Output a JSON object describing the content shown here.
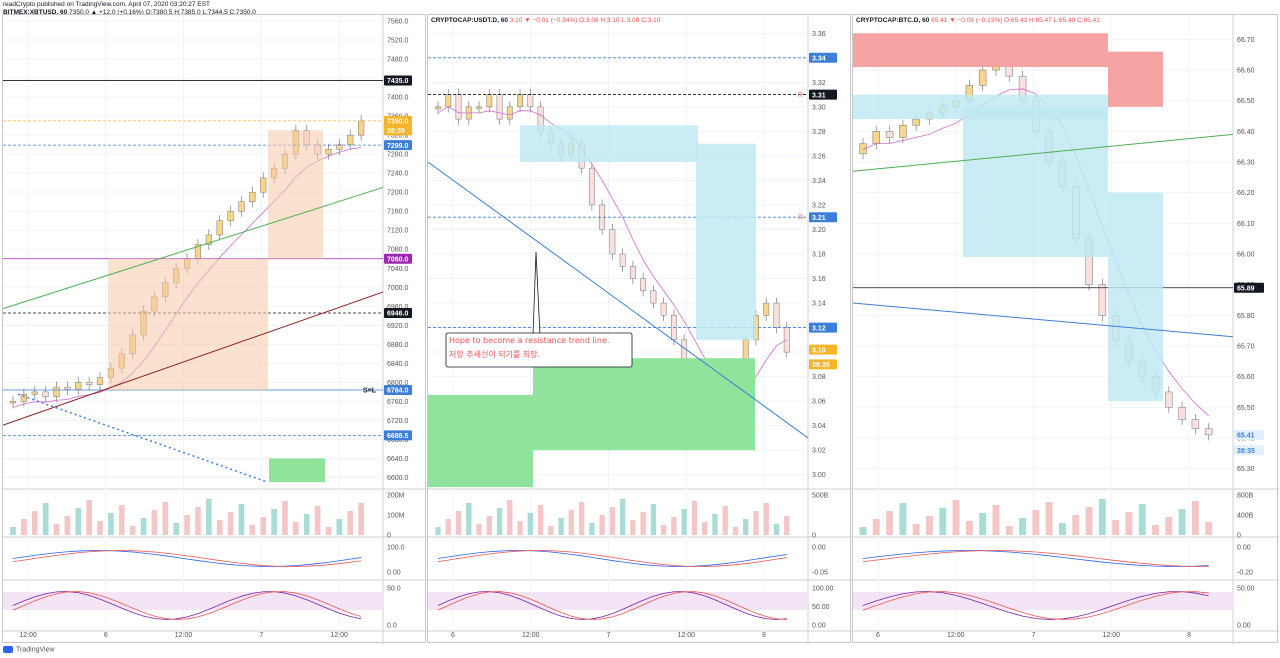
{
  "page": {
    "published_by": "readCrypto published on TradingView.com, April 07, 2020 03:20:27 EST",
    "footer": "TradingView"
  },
  "panels": [
    {
      "symbol": "BITMEX:XBTUSD, 60",
      "ohlc": "7350.0 ▲ +12.0 (+0.16%) O:7380.5 H:7385.0 L:7344.5 C:7350.0",
      "ylim": [
        6580,
        7560
      ],
      "y_ticks": [
        "7560.0",
        "7520.0",
        "7480.0",
        "7440.0",
        "7400.0",
        "7360.0",
        "7320.0",
        "7280.0",
        "7240.0",
        "7200.0",
        "7160.0",
        "7120.0",
        "7080.0",
        "7040.0",
        "7000.0",
        "6960.0",
        "6920.0",
        "6880.0",
        "6840.0",
        "6800.0",
        "6760.0",
        "6720.0",
        "6680.0",
        "6640.0",
        "6600.0"
      ],
      "x_ticks": [
        "12:00",
        "6",
        "12:00",
        "7",
        "12:00"
      ],
      "price_tags": [
        {
          "label": "7435.0",
          "value": 7435,
          "bg": "#131722",
          "line": "#131722",
          "dash": false
        },
        {
          "label": "7350.0",
          "value": 7350,
          "bg": "#f5b42a",
          "line": "#f5b42a",
          "dash": true
        },
        {
          "label": "39:35",
          "value": 7330,
          "bg": "#f5b42a",
          "line": null,
          "dash": false
        },
        {
          "label": "7299.0",
          "value": 7299,
          "bg": "#3d7fd8",
          "line": "#3d7fd8",
          "dash": true
        },
        {
          "label": "7060.0",
          "value": 7060,
          "bg": "#9c27b0",
          "line": "#9c27b0",
          "dash": false
        },
        {
          "label": "6946.0",
          "value": 6946,
          "bg": "#131722",
          "line": "#131722",
          "dash": true
        },
        {
          "label": "6784.0",
          "value": 6784,
          "bg": "#3d7fd8",
          "line": "#3d7fd8",
          "dash": false
        },
        {
          "label": "6688.5",
          "value": 6688.5,
          "bg": "#3d7fd8",
          "line": "#3d7fd8",
          "dash": true
        }
      ],
      "marker_label": "S=L",
      "vol_ticks": [
        "200M",
        "100M",
        "0"
      ],
      "macd_ticks": [
        "100.0",
        "0.00"
      ],
      "stoch_ticks": [
        "50.0",
        "0.0"
      ]
    },
    {
      "symbol": "CRYPTOCAP:USDT.D, 60",
      "ohlc": "3.10 ▼ −0.01 (−0.34%) O:3.08 H:3.10 L:3.08 C:3.10",
      "ylim": [
        2.99,
        3.37
      ],
      "y_ticks": [
        "3.36",
        "3.34",
        "3.32",
        "3.30",
        "3.28",
        "3.26",
        "3.24",
        "3.22",
        "3.20",
        "3.18",
        "3.16",
        "3.14",
        "3.12",
        "3.10",
        "3.08",
        "3.06",
        "3.04",
        "3.02",
        "3.00"
      ],
      "x_ticks": [
        "6",
        "12:00",
        "7",
        "12:00",
        "8"
      ],
      "price_tags": [
        {
          "label": "3.34",
          "value": 3.34,
          "bg": "#3d7fd8",
          "line": "#3d7fd8",
          "dash": true
        },
        {
          "label": "3.31",
          "value": 3.31,
          "bg": "#131722",
          "line": "#131722",
          "dash": true
        },
        {
          "label": "3.21",
          "value": 3.21,
          "bg": "#3d7fd8",
          "line": "#3d7fd8",
          "dash": true
        },
        {
          "label": "3.12",
          "value": 3.12,
          "bg": "#3d7fd8",
          "line": "#3d7fd8",
          "dash": true
        },
        {
          "label": "3.10",
          "value": 3.102,
          "bg": "#f5b42a",
          "line": null,
          "dash": false
        },
        {
          "label": "39:35",
          "value": 3.09,
          "bg": "#f5b42a",
          "line": null,
          "dash": false
        }
      ],
      "r_marks": [
        "R",
        "R"
      ],
      "annotation": {
        "line1": "Hope to become a resistance trend line.",
        "line2": "저항 추세선이 되기를 희망."
      },
      "vol_ticks": [
        "500B",
        "0"
      ],
      "macd_ticks": [
        "0.00",
        "-0.05"
      ],
      "stoch_ticks": [
        "100.00",
        "50.00",
        "0.00"
      ]
    },
    {
      "symbol": "CRYPTOCAP:BTC.D, 60",
      "ohlc": "65.41 ▼ −0.08 (−0.13%) O:65.43 H:65.47 L:65.40 C:65.41",
      "ylim": [
        65.24,
        66.76
      ],
      "y_ticks": [
        "66.70",
        "66.60",
        "66.50",
        "66.40",
        "66.30",
        "66.20",
        "66.10",
        "66.00",
        "65.90",
        "65.80",
        "65.70",
        "65.60",
        "65.50",
        "65.40",
        "65.30"
      ],
      "x_ticks": [
        "6",
        "12:00",
        "7",
        "12:00",
        "8"
      ],
      "price_tags": [
        {
          "label": "65.89",
          "value": 65.89,
          "bg": "#131722",
          "line": "#131722",
          "dash": false
        },
        {
          "label": "65.41",
          "value": 65.41,
          "bg": "#e3effd",
          "fg": "#3d7fd8",
          "line": null,
          "dash": false
        },
        {
          "label": "39:35",
          "value": 65.36,
          "bg": "#e3effd",
          "fg": "#3d7fd8",
          "line": null,
          "dash": false
        }
      ],
      "vol_ticks": [
        "800B",
        "400B",
        "0"
      ],
      "macd_ticks": [
        "0.00",
        "-0.20"
      ],
      "stoch_ticks": [
        "50.00",
        "0.00"
      ]
    }
  ],
  "chart_data": [
    {
      "type": "candlestick",
      "title": "BITMEX:XBTUSD, 60",
      "ylim": [
        6580,
        7560
      ],
      "close": [
        6760,
        6775,
        6780,
        6770,
        6790,
        6785,
        6800,
        6795,
        6810,
        6830,
        6860,
        6900,
        6950,
        6980,
        7010,
        7040,
        7060,
        7090,
        7110,
        7140,
        7160,
        7180,
        7200,
        7230,
        7250,
        7280,
        7330,
        7300,
        7280,
        7290,
        7300,
        7320,
        7350
      ],
      "series": [
        {
          "name": "",
          "color": "#4caf50",
          "x": [
            0,
            1
          ],
          "y": [
            6955,
            7210
          ]
        },
        {
          "name": "",
          "color": "#8b1a1a",
          "x": [
            0,
            1
          ],
          "y": [
            6710,
            6990
          ]
        }
      ]
    },
    {
      "type": "candlestick",
      "title": "CRYPTOCAP:USDT.D, 60",
      "ylim": [
        2.99,
        3.37
      ],
      "close": [
        3.3,
        3.31,
        3.29,
        3.3,
        3.3,
        3.31,
        3.29,
        3.3,
        3.31,
        3.3,
        3.28,
        3.27,
        3.26,
        3.27,
        3.25,
        3.22,
        3.2,
        3.18,
        3.17,
        3.16,
        3.15,
        3.14,
        3.13,
        3.11,
        3.09,
        3.07,
        3.06,
        3.05,
        3.07,
        3.09,
        3.11,
        3.13,
        3.14,
        3.12,
        3.1
      ]
    },
    {
      "type": "candlestick",
      "title": "CRYPTOCAP:BTC.D, 60",
      "ylim": [
        65.24,
        66.76
      ],
      "close": [
        66.36,
        66.4,
        66.38,
        66.42,
        66.44,
        66.46,
        66.48,
        66.5,
        66.55,
        66.6,
        66.62,
        66.58,
        66.5,
        66.4,
        66.3,
        66.22,
        66.05,
        65.9,
        65.8,
        65.72,
        65.65,
        65.6,
        65.55,
        65.5,
        65.46,
        65.43,
        65.41
      ]
    }
  ]
}
